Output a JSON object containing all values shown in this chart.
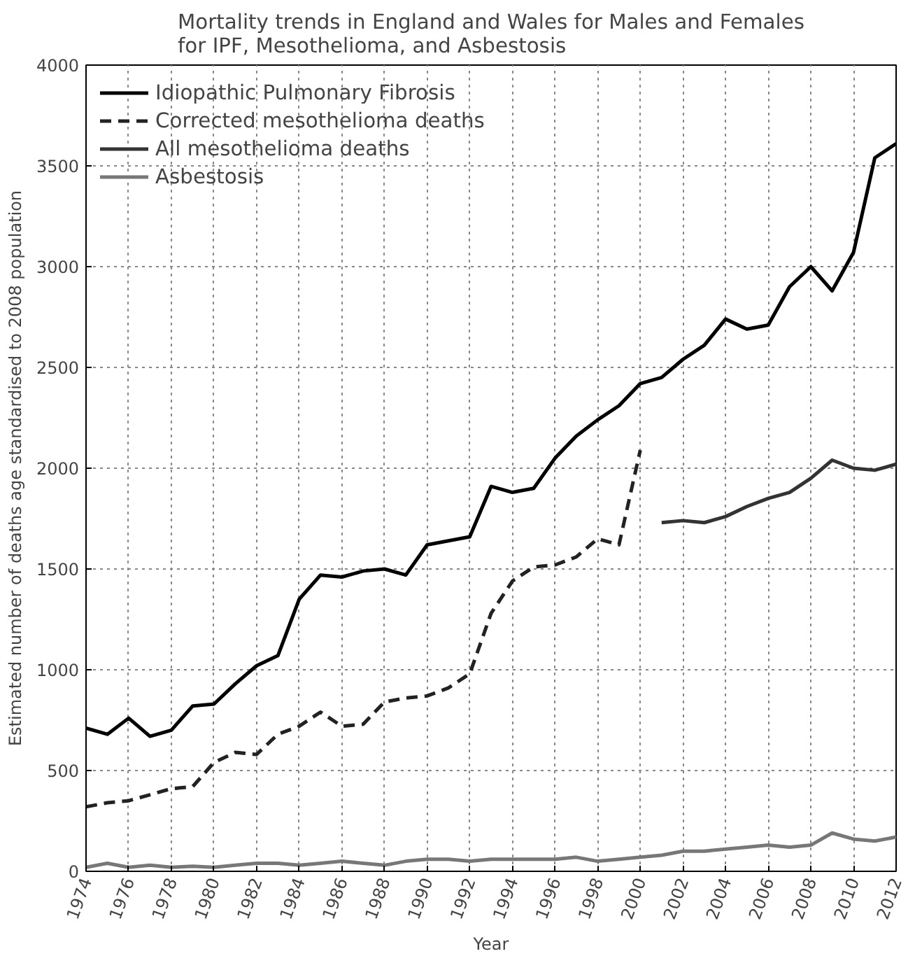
{
  "chart_data": {
    "type": "line",
    "title": "Mortality trends in England and Wales for Males and Females\nfor IPF, Mesothelioma, and Asbestosis",
    "xlabel": "Year",
    "ylabel": "Estimated number of deaths age standardised to 2008 population",
    "xlim": [
      1974,
      2012
    ],
    "xticks": [
      1974,
      1976,
      1978,
      1980,
      1982,
      1984,
      1986,
      1988,
      1990,
      1992,
      1994,
      1996,
      1998,
      2000,
      2002,
      2004,
      2006,
      2008,
      2010,
      2012
    ],
    "ylim": [
      0,
      4000
    ],
    "yticks": [
      0,
      500,
      1000,
      1500,
      2000,
      2500,
      3000,
      3500,
      4000
    ],
    "grid": true,
    "legend": "top left",
    "series": [
      {
        "name": "Idiopathic Pulmonary Fibrosis",
        "color": "#000000",
        "line_style": "solid",
        "x": [
          1974,
          1975,
          1976,
          1977,
          1978,
          1979,
          1980,
          1981,
          1982,
          1983,
          1984,
          1985,
          1986,
          1987,
          1988,
          1989,
          1990,
          1991,
          1992,
          1993,
          1994,
          1995,
          1996,
          1997,
          1998,
          1999,
          2000,
          2001,
          2002,
          2003,
          2004,
          2005,
          2006,
          2007,
          2008,
          2009,
          2010,
          2011,
          2012
        ],
        "values": [
          710,
          680,
          760,
          670,
          700,
          820,
          830,
          930,
          1020,
          1070,
          1350,
          1470,
          1460,
          1490,
          1500,
          1470,
          1620,
          1640,
          1660,
          1910,
          1880,
          1900,
          2050,
          2160,
          2240,
          2310,
          2420,
          2450,
          2540,
          2610,
          2740,
          2690,
          2710,
          2900,
          3000,
          2880,
          3070,
          3540,
          3610
        ]
      },
      {
        "name": "Corrected mesothelioma deaths",
        "color": "#222222",
        "line_style": "dashed",
        "x": [
          1974,
          1975,
          1976,
          1977,
          1978,
          1979,
          1980,
          1981,
          1982,
          1983,
          1984,
          1985,
          1986,
          1987,
          1988,
          1989,
          1990,
          1991,
          1992,
          1993,
          1994,
          1995,
          1996,
          1997,
          1998,
          1999,
          2000
        ],
        "values": [
          320,
          340,
          350,
          380,
          410,
          420,
          540,
          590,
          580,
          680,
          720,
          790,
          720,
          730,
          840,
          860,
          870,
          910,
          980,
          1280,
          1440,
          1510,
          1520,
          1560,
          1650,
          1620,
          2090
        ]
      },
      {
        "name": "All mesothelioma deaths",
        "color": "#333333",
        "line_style": "solid",
        "x": [
          2001,
          2002,
          2003,
          2004,
          2005,
          2006,
          2007,
          2008,
          2009,
          2010,
          2011,
          2012
        ],
        "values": [
          1730,
          1740,
          1730,
          1760,
          1810,
          1850,
          1880,
          1950,
          2040,
          2000,
          1990,
          2020
        ]
      },
      {
        "name": "Asbestosis",
        "color": "#777777",
        "line_style": "solid",
        "x": [
          1974,
          1975,
          1976,
          1977,
          1978,
          1979,
          1980,
          1981,
          1982,
          1983,
          1984,
          1985,
          1986,
          1987,
          1988,
          1989,
          1990,
          1991,
          1992,
          1993,
          1994,
          1995,
          1996,
          1997,
          1998,
          1999,
          2000,
          2001,
          2002,
          2003,
          2004,
          2005,
          2006,
          2007,
          2008,
          2009,
          2010,
          2011,
          2012
        ],
        "values": [
          20,
          40,
          20,
          30,
          20,
          25,
          20,
          30,
          40,
          40,
          30,
          40,
          50,
          40,
          30,
          50,
          60,
          60,
          50,
          60,
          60,
          60,
          60,
          70,
          50,
          60,
          70,
          80,
          100,
          100,
          110,
          120,
          130,
          120,
          130,
          190,
          160,
          150,
          170
        ]
      }
    ]
  }
}
